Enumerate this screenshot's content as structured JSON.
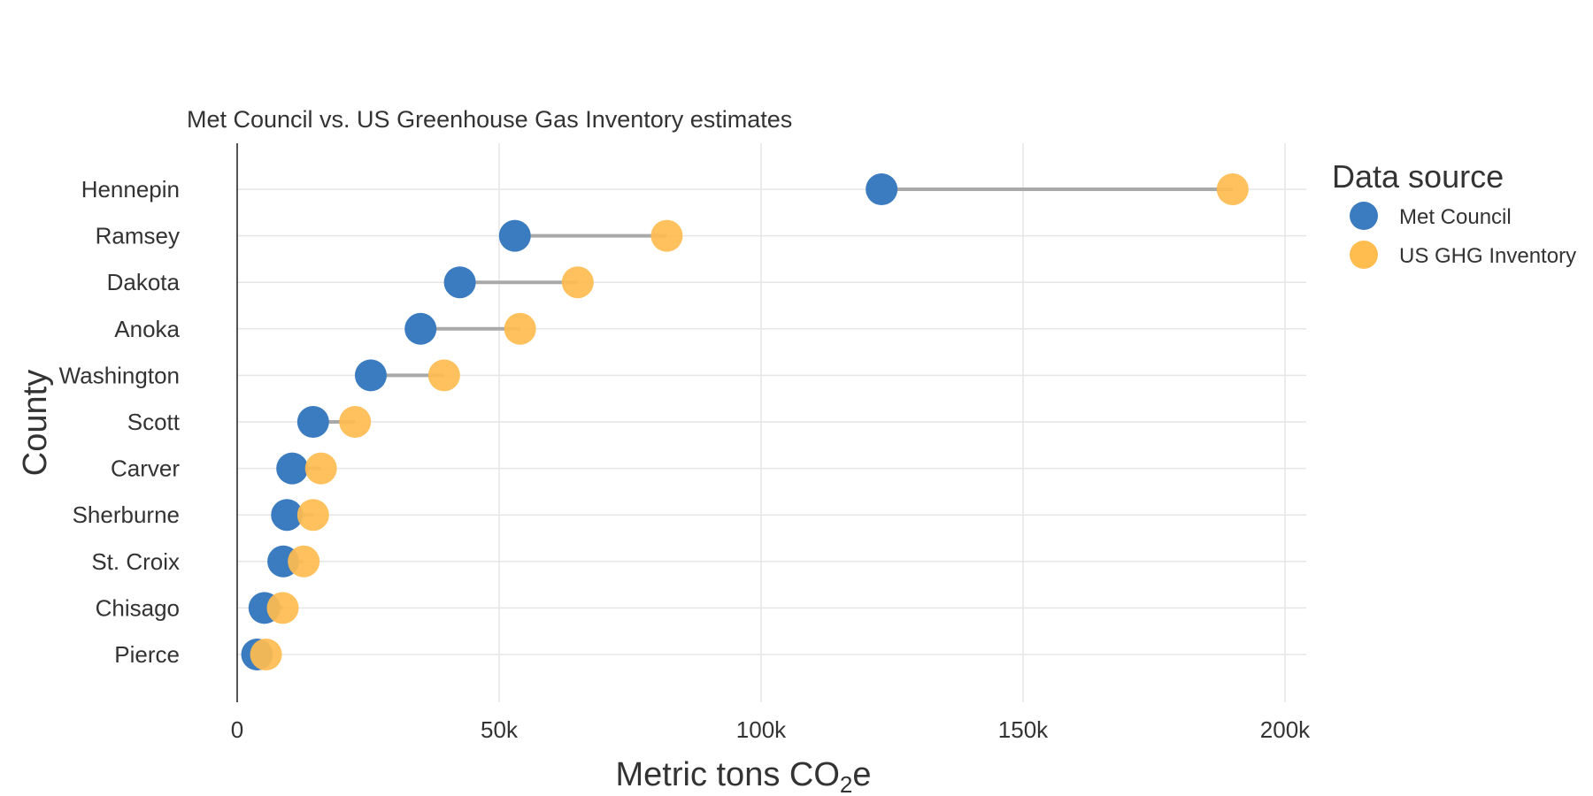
{
  "chart_data": {
    "type": "dumbbell",
    "title": "Met Council vs. US Greenhouse Gas Inventory estimates",
    "xlabel": {
      "main": "Metric tons CO",
      "subscript": "2",
      "suffix": "e"
    },
    "ylabel": "County",
    "xlim": [
      0,
      205000
    ],
    "x_ticks": [
      0,
      50000,
      100000,
      150000,
      200000
    ],
    "x_tick_labels": [
      "0",
      "50k",
      "100k",
      "150k",
      "200k"
    ],
    "grid": true,
    "legend": {
      "title": "Data source",
      "placement": "right"
    },
    "categories": [
      "Hennepin",
      "Ramsey",
      "Dakota",
      "Anoka",
      "Washington",
      "Scott",
      "Carver",
      "Sherburne",
      "St. Croix",
      "Chisago",
      "Pierce"
    ],
    "series": [
      {
        "name": "Met Council",
        "color": "#3B7BBF",
        "values": [
          123000,
          53000,
          42500,
          35000,
          25500,
          14500,
          10500,
          9500,
          8800,
          5200,
          3800
        ]
      },
      {
        "name": "US GHG Inventory",
        "color": "#FFBC4F",
        "values": [
          190000,
          82000,
          65000,
          54000,
          39500,
          22500,
          16000,
          14500,
          12700,
          8700,
          5500
        ]
      }
    ],
    "connector_color": "#A9A9A9"
  }
}
